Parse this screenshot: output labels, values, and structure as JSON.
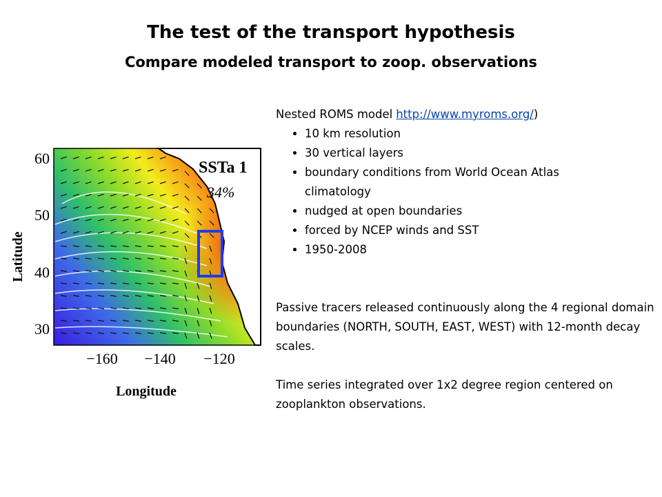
{
  "header": {
    "title": "The test of the transport hypothesis",
    "subtitle": "Compare modeled transport to zoop. observations"
  },
  "figure": {
    "y_axis_label": "Latitude",
    "x_axis_label": "Longitude",
    "yticks": [
      "60",
      "50",
      "40",
      "30"
    ],
    "xticks": [
      "−160",
      "−140",
      "−120"
    ],
    "panel_label": "SSTa 1",
    "panel_percent": "34%"
  },
  "text": {
    "intro": {
      "lead": "Nested ROMS model",
      "link": "http://www.myroms.org/",
      "trail": ")"
    },
    "bullets": [
      "10 km resolution",
      "30 vertical layers",
      "boundary conditions from World Ocean Atlas climatology",
      "nudged at open boundaries",
      "forced by NCEP winds and SST",
      "1950-2008"
    ],
    "paragraphs": [
      "Passive tracers released continuously along the 4 regional domain boundaries (NORTH, SOUTH, EAST, WEST) with 12-month decay scales.",
      "Time series integrated over 1x2 degree region centered on zooplankton observations."
    ]
  }
}
